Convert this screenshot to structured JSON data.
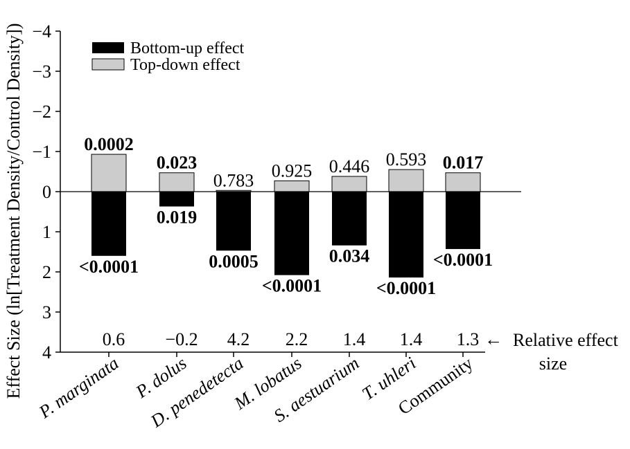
{
  "chart_data": {
    "type": "bar",
    "ylabel": "Effect Size (ln[Treatment Density/Control Density])",
    "ylim": [
      -4,
      4
    ],
    "y_inverted": true,
    "y_ticks": [
      "−4",
      "−3",
      "−2",
      "−1",
      "0",
      "1",
      "2",
      "3",
      "4"
    ],
    "categories": [
      "P. marginata",
      "P. dolus",
      "D. penedetecta",
      "M. lobatus",
      "S. aestuarium",
      "T. uhleri",
      "Community"
    ],
    "series": [
      {
        "name": "Bottom-up effect",
        "color": "#000000",
        "values": [
          1.6,
          0.37,
          1.47,
          2.08,
          1.34,
          2.14,
          1.43
        ],
        "labels": [
          "<0.0001",
          "0.019",
          "0.0005",
          "<0.0001",
          "0.034",
          "<0.0001",
          "<0.0001"
        ],
        "label_bold": [
          true,
          true,
          true,
          true,
          true,
          true,
          true
        ]
      },
      {
        "name": "Top-down effect",
        "color": "#cccccc",
        "values": [
          -0.93,
          -0.47,
          -0.03,
          -0.27,
          -0.38,
          -0.55,
          -0.47
        ],
        "labels": [
          "0.0002",
          "0.023",
          "0.783",
          "0.925",
          "0.446",
          "0.593",
          "0.017"
        ],
        "label_bold": [
          true,
          true,
          false,
          false,
          false,
          false,
          true
        ]
      }
    ],
    "relative_effect_size": {
      "values": [
        "0.6",
        "−0.2",
        "4.2",
        "2.2",
        "1.4",
        "1.4",
        "1.3"
      ],
      "arrow": "←",
      "label_line1": "Relative effect",
      "label_line2": "size"
    },
    "legend": {
      "position": "top-left",
      "entries": [
        "Bottom-up effect",
        "Top-down effect"
      ]
    },
    "grid": false
  }
}
